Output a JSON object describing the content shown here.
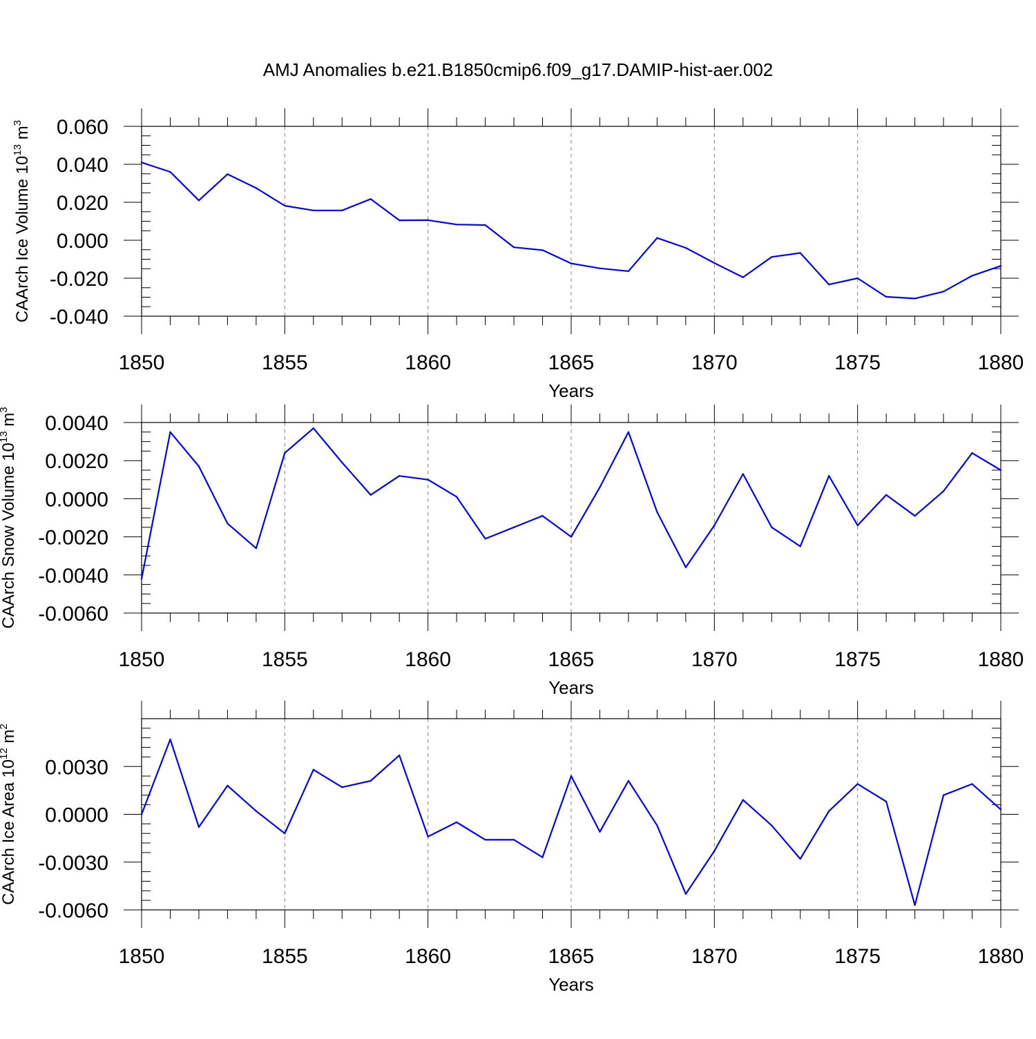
{
  "title": "AMJ Anomalies b.e21.B1850cmip6.f09_g17.DAMIP-hist-aer.002",
  "colors": {
    "line": "#0000ff",
    "axis": "#000000",
    "grid": "#808080"
  },
  "chart_data": [
    {
      "type": "line",
      "ylabel_main": "CAArch Ice Volume 10",
      "ylabel_exp": "13",
      "ylabel_unit": " m",
      "ylabel_unit_exp": "3",
      "xlabel": "Years",
      "xlim": [
        1850,
        1880
      ],
      "ylim": [
        -0.04,
        0.06
      ],
      "xticks": [
        1850,
        1855,
        1860,
        1865,
        1870,
        1875,
        1880
      ],
      "xtick_labels": [
        "1850",
        "1855",
        "1860",
        "1865",
        "1870",
        "1875",
        "1880"
      ],
      "yticks": [
        -0.04,
        -0.02,
        0.0,
        0.02,
        0.04,
        0.06
      ],
      "ytick_labels": [
        "-0.040",
        "-0.020",
        "0.000",
        "0.020",
        "0.040",
        "0.060"
      ],
      "grid": "vertical-dashed-at-major-x",
      "x": [
        1850,
        1851,
        1852,
        1853,
        1854,
        1855,
        1856,
        1857,
        1858,
        1859,
        1860,
        1861,
        1862,
        1863,
        1864,
        1865,
        1866,
        1867,
        1868,
        1869,
        1870,
        1871,
        1872,
        1873,
        1874,
        1875,
        1876,
        1877,
        1878,
        1879,
        1880
      ],
      "values": [
        0.041,
        0.036,
        0.021,
        0.0348,
        0.0275,
        0.0182,
        0.0157,
        0.0157,
        0.0217,
        0.0105,
        0.0106,
        0.0083,
        0.008,
        -0.0037,
        -0.0052,
        -0.0122,
        -0.0148,
        -0.0163,
        0.0012,
        -0.004,
        -0.012,
        -0.0195,
        -0.0088,
        -0.0067,
        -0.0233,
        -0.02,
        -0.0298,
        -0.0307,
        -0.027,
        -0.0187,
        -0.0135
      ]
    },
    {
      "type": "line",
      "ylabel_main": "CAArch Snow Volume 10",
      "ylabel_exp": "13",
      "ylabel_unit": " m",
      "ylabel_unit_exp": "3",
      "xlabel": "Years",
      "xlim": [
        1850,
        1880
      ],
      "ylim": [
        -0.006,
        0.004
      ],
      "xticks": [
        1850,
        1855,
        1860,
        1865,
        1870,
        1875,
        1880
      ],
      "xtick_labels": [
        "1850",
        "1855",
        "1860",
        "1865",
        "1870",
        "1875",
        "1880"
      ],
      "yticks": [
        -0.006,
        -0.004,
        -0.002,
        0.0,
        0.002,
        0.004
      ],
      "ytick_labels": [
        "-0.0060",
        "-0.0040",
        "-0.0020",
        "0.0000",
        "0.0020",
        "0.0040"
      ],
      "grid": "vertical-dashed-at-major-x",
      "x": [
        1850,
        1851,
        1852,
        1853,
        1854,
        1855,
        1856,
        1857,
        1858,
        1859,
        1860,
        1861,
        1862,
        1863,
        1864,
        1865,
        1866,
        1867,
        1868,
        1869,
        1870,
        1871,
        1872,
        1873,
        1874,
        1875,
        1876,
        1877,
        1878,
        1879,
        1880
      ],
      "values": [
        -0.0042,
        0.0035,
        0.0017,
        -0.0013,
        -0.0026,
        0.0024,
        0.0037,
        0.0019,
        0.0002,
        0.0012,
        0.001,
        0.0001,
        -0.0021,
        -0.0015,
        -0.0009,
        -0.002,
        0.0006,
        0.0035,
        -0.0007,
        -0.0036,
        -0.0014,
        0.0013,
        -0.0015,
        -0.0025,
        0.0012,
        -0.0014,
        0.0002,
        -0.0009,
        0.0004,
        0.0024,
        0.0015
      ]
    },
    {
      "type": "line",
      "ylabel_main": "CAArch Ice Area 10",
      "ylabel_exp": "12",
      "ylabel_unit": " m",
      "ylabel_unit_exp": "2",
      "xlabel": "Years",
      "xlim": [
        1850,
        1880
      ],
      "ylim": [
        -0.006,
        0.006
      ],
      "xticks": [
        1850,
        1855,
        1860,
        1865,
        1870,
        1875,
        1880
      ],
      "xtick_labels": [
        "1850",
        "1855",
        "1860",
        "1865",
        "1870",
        "1875",
        "1880"
      ],
      "yticks": [
        -0.006,
        -0.003,
        0.0,
        0.003
      ],
      "ytick_labels": [
        "-0.0060",
        "-0.0030",
        "0.0000",
        "0.0030"
      ],
      "grid": "vertical-dashed-at-major-x",
      "x": [
        1850,
        1851,
        1852,
        1853,
        1854,
        1855,
        1856,
        1857,
        1858,
        1859,
        1860,
        1861,
        1862,
        1863,
        1864,
        1865,
        1866,
        1867,
        1868,
        1869,
        1870,
        1871,
        1872,
        1873,
        1874,
        1875,
        1876,
        1877,
        1878,
        1879,
        1880
      ],
      "values": [
        0.0,
        0.0047,
        -0.0008,
        0.0018,
        0.0002,
        -0.0012,
        0.0028,
        0.0017,
        0.0021,
        0.0037,
        -0.0014,
        -0.0005,
        -0.0016,
        -0.0016,
        -0.0027,
        0.0024,
        -0.0011,
        0.0021,
        -0.0007,
        -0.005,
        -0.0023,
        0.0009,
        -0.0007,
        -0.0028,
        0.0002,
        0.0019,
        0.0008,
        -0.0057,
        0.0012,
        0.0019,
        0.0003
      ]
    }
  ]
}
